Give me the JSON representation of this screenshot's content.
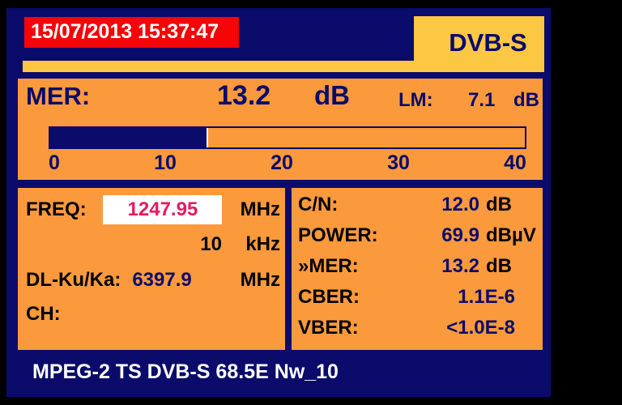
{
  "header": {
    "datetime": "15/07/2013 15:37:47",
    "mode": "DVB-S"
  },
  "mer_section": {
    "label": "MER:",
    "value": "13.2",
    "unit": "dB",
    "lm_label": "LM:",
    "lm_value": "7.1",
    "lm_unit": "dB",
    "bar": {
      "min": 0,
      "max": 40,
      "value": 13.2,
      "ticks": [
        "0",
        "10",
        "20",
        "30",
        "40"
      ],
      "fill_color": "#0b0b6b"
    }
  },
  "tuning": {
    "freq_label": "FREQ:",
    "freq_value": "1247.95",
    "freq_unit": "MHz",
    "step_value": "10",
    "step_unit": "kHz",
    "dl_label": "DL-Ku/Ka:",
    "dl_value": "6397.9",
    "dl_unit": "MHz",
    "ch_label": "CH:",
    "ch_value": ""
  },
  "measurements": {
    "rows": [
      {
        "label": "C/N:",
        "value": "12.0",
        "unit": "dB"
      },
      {
        "label": "POWER:",
        "value": "69.9",
        "unit": "dBµV"
      },
      {
        "label": "»MER:",
        "value": "13.2",
        "unit": "dB"
      },
      {
        "label": "CBER:",
        "value": "1.1E-6",
        "unit": ""
      },
      {
        "label": "VBER:",
        "value": "<1.0E-8",
        "unit": ""
      }
    ]
  },
  "footer": {
    "text": "MPEG-2 TS DVB-S 68.5E Nw_10"
  },
  "colors": {
    "navy": "#0b0b6b",
    "orange": "#fa9a3d",
    "gold": "#fcc743",
    "red": "#f50505",
    "freq_pink": "#e8195f",
    "white": "#ffffff",
    "black": "#000000"
  }
}
